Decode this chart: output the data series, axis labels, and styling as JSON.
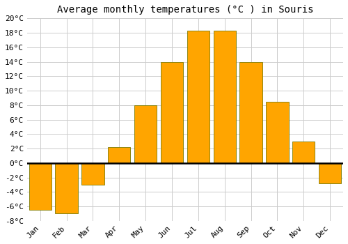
{
  "title": "Average monthly temperatures (°C ) in Souris",
  "months": [
    "Jan",
    "Feb",
    "Mar",
    "Apr",
    "May",
    "Jun",
    "Jul",
    "Aug",
    "Sep",
    "Oct",
    "Nov",
    "Dec"
  ],
  "values": [
    -6.5,
    -7.0,
    -3.0,
    2.2,
    8.0,
    14.0,
    18.3,
    18.3,
    14.0,
    8.5,
    3.0,
    -2.8
  ],
  "bar_color": "#FFA500",
  "bar_edge_color": "#7a7a00",
  "background_color": "#ffffff",
  "grid_color": "#cccccc",
  "ylim": [
    -8,
    20
  ],
  "yticks": [
    -8,
    -6,
    -4,
    -2,
    0,
    2,
    4,
    6,
    8,
    10,
    12,
    14,
    16,
    18,
    20
  ],
  "title_fontsize": 10,
  "tick_fontsize": 8,
  "font_family": "monospace",
  "bar_width": 0.85
}
